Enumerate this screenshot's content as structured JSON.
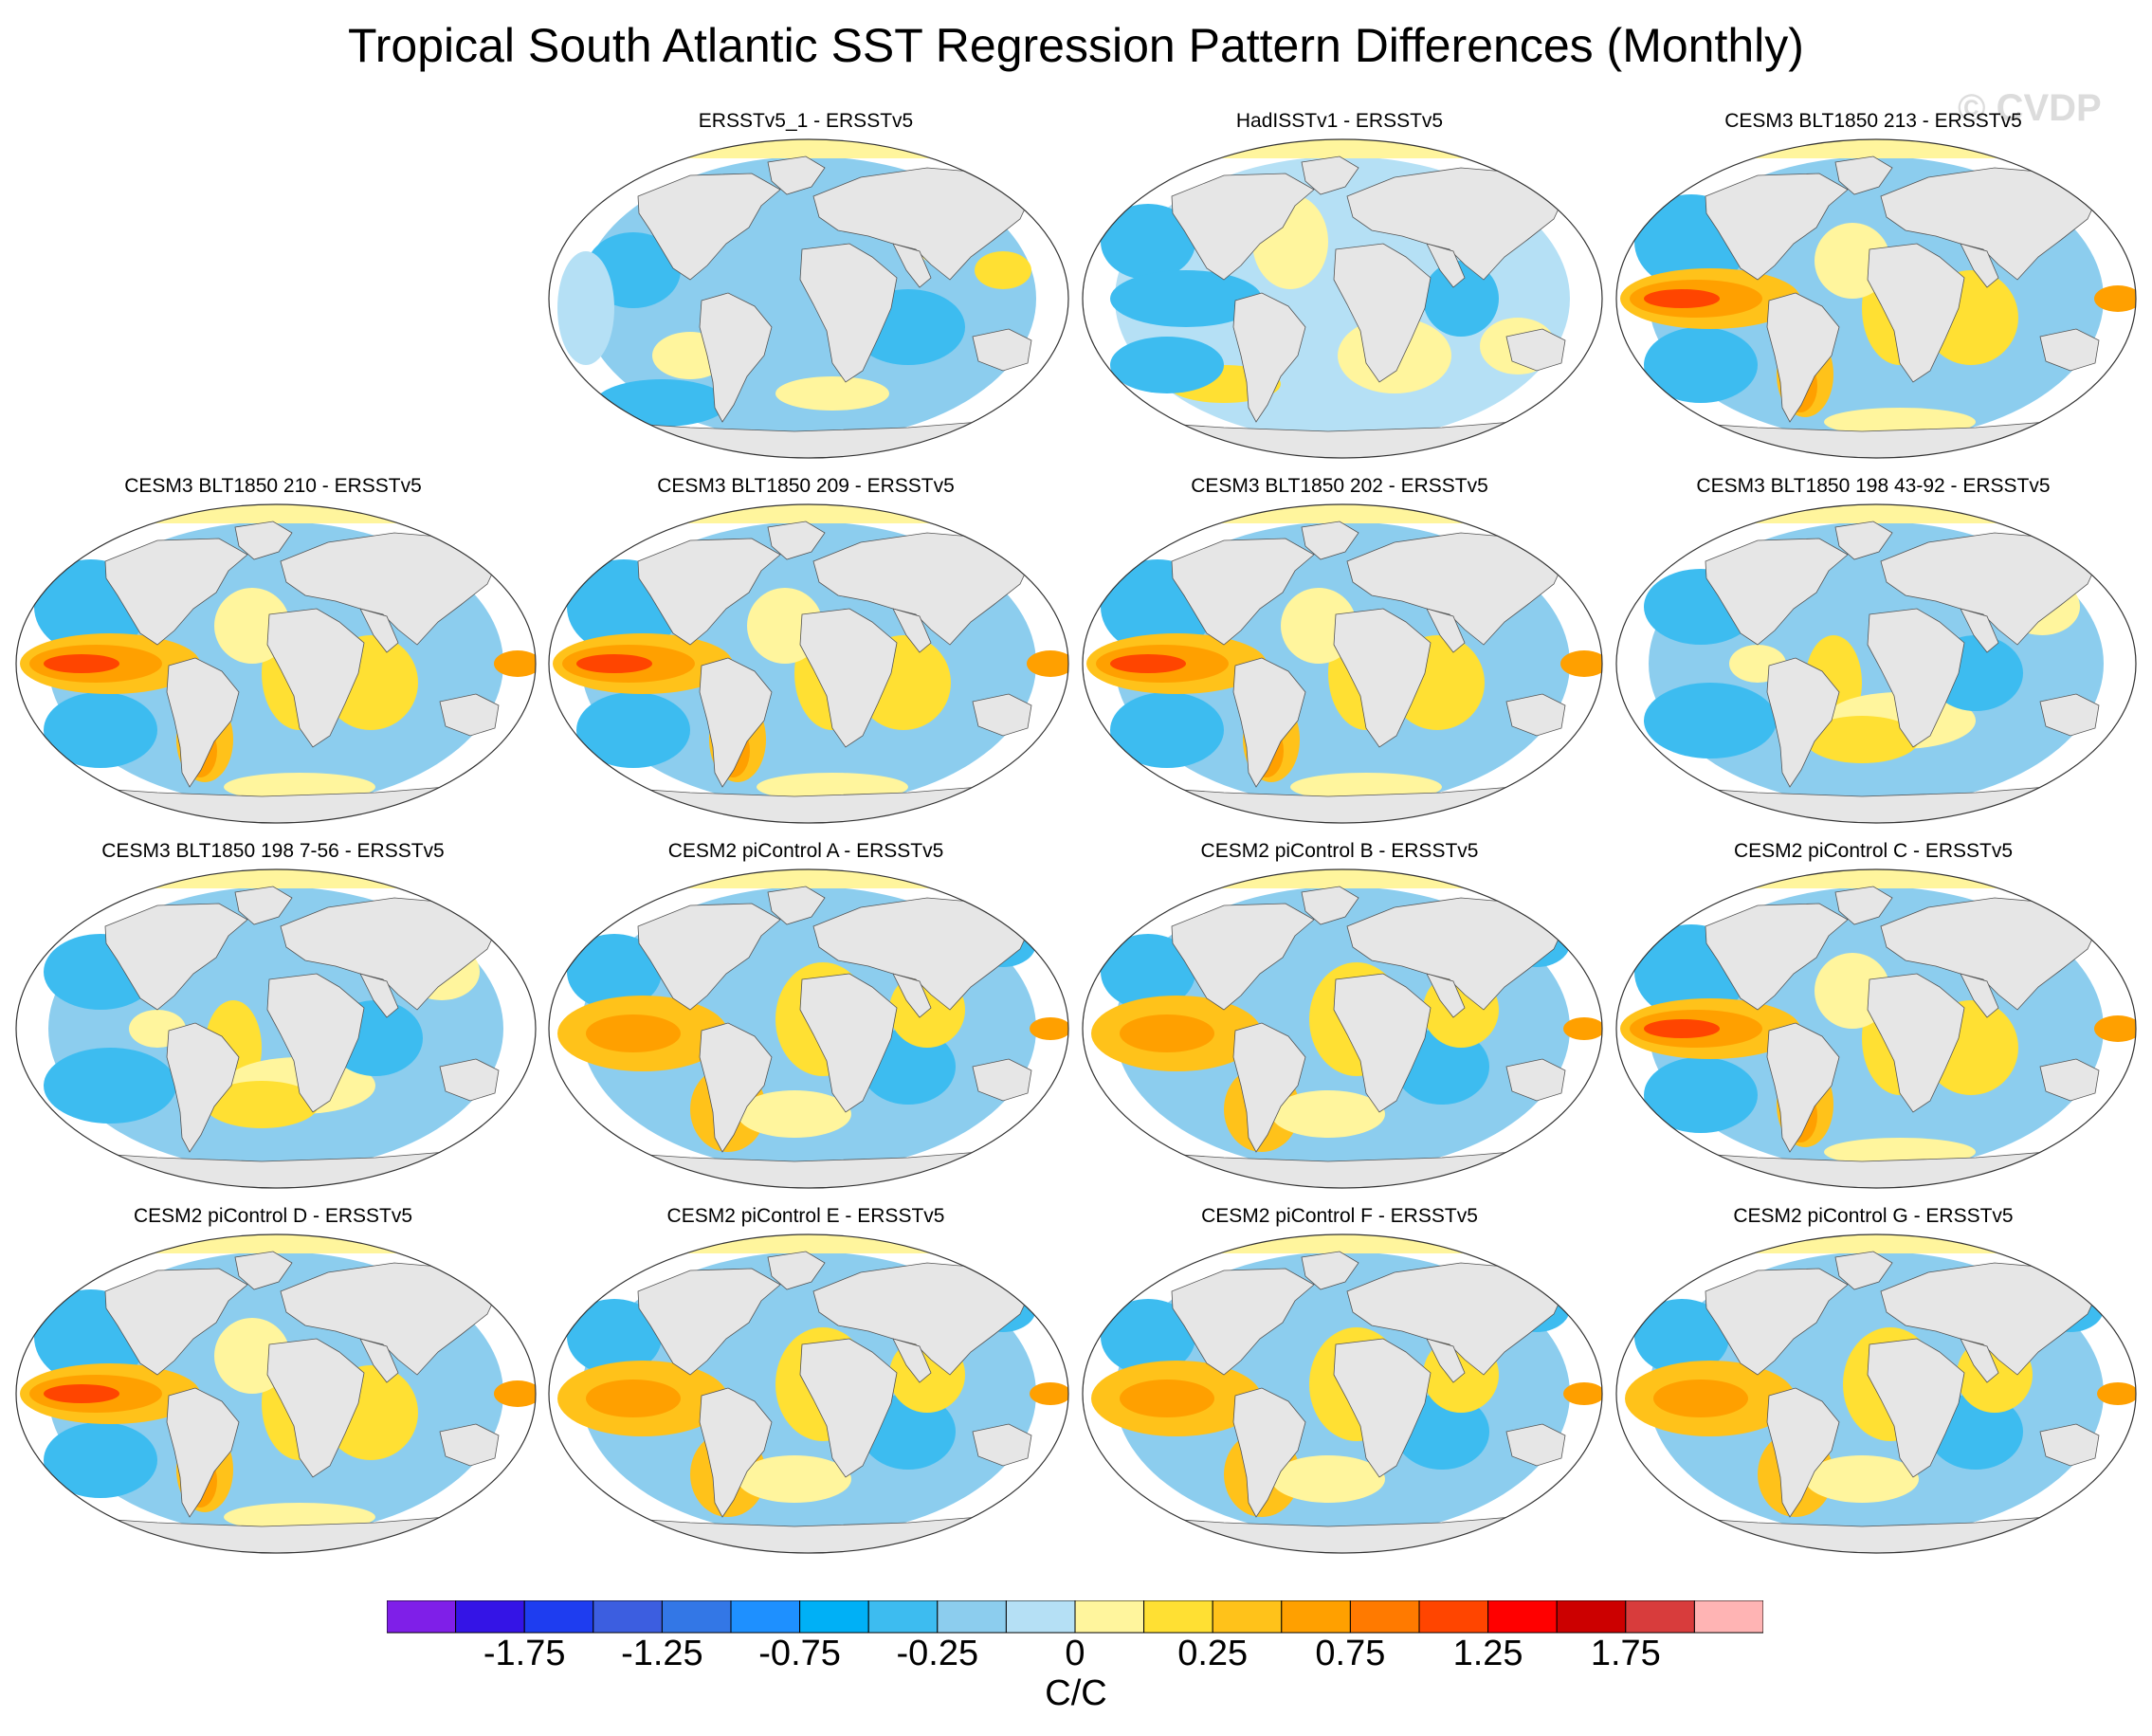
{
  "title": "Tropical South Atlantic SST Regression Pattern Differences (Monthly)",
  "watermark": "© CVDP",
  "panels": [
    {
      "title": "ERSSTv5_1 - ERSSTv5",
      "pattern": "weak"
    },
    {
      "title": "HadISSTv1 - ERSSTv5",
      "pattern": "weak-blue-pacific"
    },
    {
      "title": "CESM3 BLT1850 213 - ERSSTv5",
      "pattern": "enso-strong"
    },
    {
      "title": "CESM3 BLT1850 210 - ERSSTv5",
      "pattern": "enso-strong"
    },
    {
      "title": "CESM3 BLT1850 209 - ERSSTv5",
      "pattern": "enso-strong"
    },
    {
      "title": "CESM3 BLT1850 202 - ERSSTv5",
      "pattern": "enso-strong"
    },
    {
      "title": "CESM3 BLT1850 198 43-92 - ERSSTv5",
      "pattern": "mixed"
    },
    {
      "title": "CESM3 BLT1850 198 7-56 - ERSSTv5",
      "pattern": "mixed"
    },
    {
      "title": "CESM2 piControl A - ERSSTv5",
      "pattern": "enso-moderate"
    },
    {
      "title": "CESM2 piControl B - ERSSTv5",
      "pattern": "enso-moderate"
    },
    {
      "title": "CESM2 piControl C - ERSSTv5",
      "pattern": "enso-strong"
    },
    {
      "title": "CESM2 piControl D - ERSSTv5",
      "pattern": "enso-strong"
    },
    {
      "title": "CESM2 piControl E - ERSSTv5",
      "pattern": "enso-moderate"
    },
    {
      "title": "CESM2 piControl F - ERSSTv5",
      "pattern": "enso-moderate"
    },
    {
      "title": "CESM2 piControl G - ERSSTv5",
      "pattern": "enso-moderate"
    }
  ],
  "colorbar": {
    "units": "C/C",
    "tick_labels": [
      "-1.75",
      "-1.25",
      "-0.75",
      "-0.25",
      "0",
      "0.25",
      "0.75",
      "1.25",
      "1.75"
    ],
    "colors": [
      "#7f1fe8",
      "#3414e6",
      "#1e3df0",
      "#3c5ee0",
      "#3377e6",
      "#1e90ff",
      "#00b0f6",
      "#3dbcf0",
      "#8ccdee",
      "#b5e0f5",
      "#fff59d",
      "#ffe033",
      "#ffc21a",
      "#ffa000",
      "#ff7a00",
      "#ff4500",
      "#ff0000",
      "#cc0000",
      "#d83c3c",
      "#ffb4b4"
    ]
  }
}
